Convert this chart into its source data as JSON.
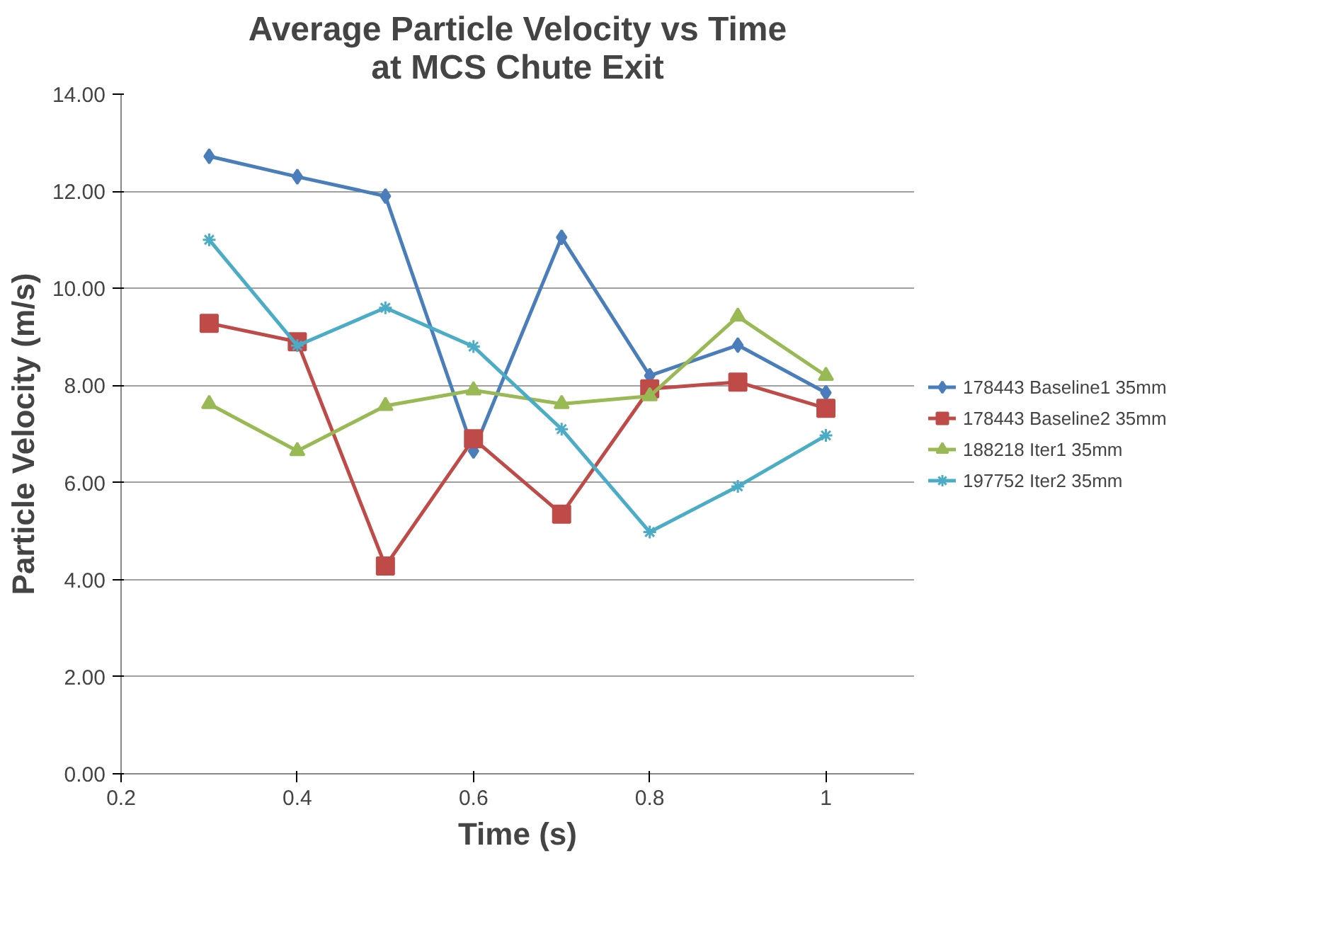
{
  "chart_data": {
    "type": "line",
    "title": "Average Particle Velocity vs Time\nat MCS Chute Exit",
    "xlabel": "Time (s)",
    "ylabel": "Particle Velocity (m/s)",
    "x": [
      0.3,
      0.4,
      0.5,
      0.6,
      0.7,
      0.8,
      0.9,
      1
    ],
    "series": [
      {
        "name": "178443 Baseline1 35mm",
        "color": "#4a7ebb",
        "marker": "diamond",
        "values": [
          12.72,
          12.3,
          11.9,
          6.65,
          11.05,
          8.2,
          8.83,
          7.85
        ]
      },
      {
        "name": "178443 Baseline2 35mm",
        "color": "#be4b48",
        "marker": "square",
        "values": [
          9.28,
          8.9,
          4.28,
          6.9,
          5.35,
          7.93,
          8.07,
          7.53
        ]
      },
      {
        "name": "188218 Iter1 35mm",
        "color": "#98b954",
        "marker": "triangle",
        "values": [
          7.62,
          6.65,
          7.58,
          7.9,
          7.62,
          7.78,
          9.42,
          8.2
        ]
      },
      {
        "name": "197752 Iter2 35mm",
        "color": "#4bacc6",
        "marker": "cross",
        "values": [
          11.0,
          8.82,
          9.6,
          8.8,
          7.1,
          4.98,
          5.92,
          6.97
        ]
      }
    ],
    "xlim": [
      0.2,
      1.1
    ],
    "xticks": [
      0.2,
      0.4,
      0.6,
      0.8,
      1
    ],
    "ylim": [
      0,
      14
    ],
    "yticks": [
      {
        "value": 0,
        "label": "0.00"
      },
      {
        "value": 2,
        "label": "2.00"
      },
      {
        "value": 4,
        "label": "4.00"
      },
      {
        "value": 6,
        "label": "6.00"
      },
      {
        "value": 8,
        "label": "8.00"
      },
      {
        "value": 10,
        "label": "10.00"
      },
      {
        "value": 12,
        "label": "12.00"
      },
      {
        "value": 14,
        "label": "14.00"
      }
    ],
    "grid": "y",
    "legend": "right",
    "line_style": "solid"
  }
}
